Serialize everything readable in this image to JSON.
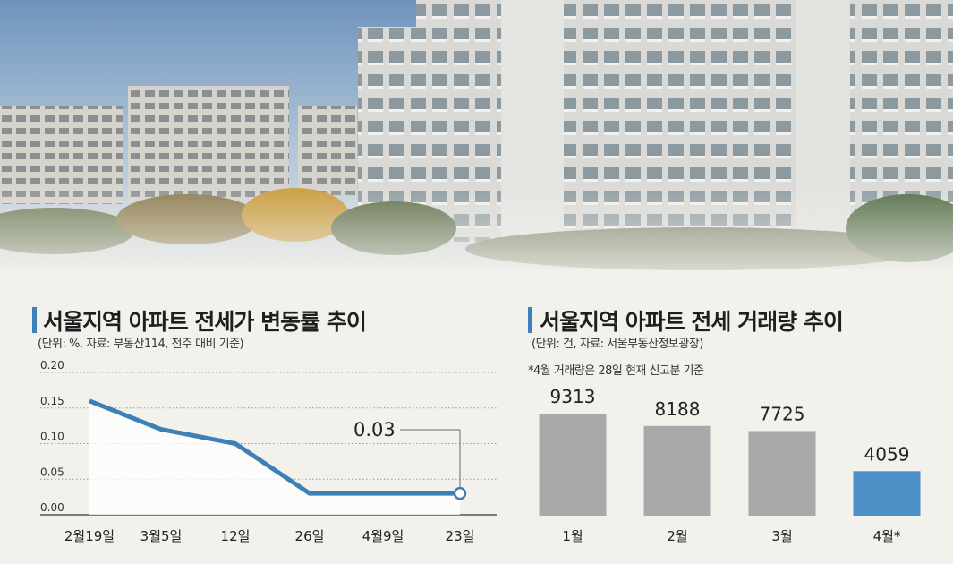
{
  "left_panel": {
    "title": "서울지역 아파트 전세가 변동률 추이",
    "note": "(단위: %, 자료: 부동산114, 전주 대비 기준)"
  },
  "right_panel": {
    "title": "서울지역 아파트 전세 거래량 추이",
    "note": "(단위: 건, 자료: 서울부동산정보광장)",
    "footnote": "*4월 거래량은 28일 현재 신고분 기준"
  },
  "colors": {
    "accent": "#3f7fb8",
    "bar_gray": "#a9a9a9",
    "bar_highlight": "#4d8fc6"
  },
  "chart_data": [
    {
      "type": "line",
      "categories": [
        "2월19일",
        "3월5일",
        "12일",
        "26일",
        "4월9일",
        "23일"
      ],
      "values": [
        0.16,
        0.12,
        0.1,
        0.03,
        0.03,
        0.03
      ],
      "yticks": [
        "0.20",
        "0.15",
        "0.10",
        "0.05",
        "0.00"
      ],
      "ylim": [
        0,
        0.2
      ],
      "annotation": {
        "text": "0.03",
        "index": 5
      },
      "grid": true
    },
    {
      "type": "bar",
      "categories": [
        "1월",
        "2월",
        "3월",
        "4월*"
      ],
      "values": [
        9313,
        8188,
        7725,
        4059
      ],
      "labels": [
        "9313",
        "8188",
        "7725",
        "4059"
      ],
      "highlight_index": 3
    }
  ]
}
